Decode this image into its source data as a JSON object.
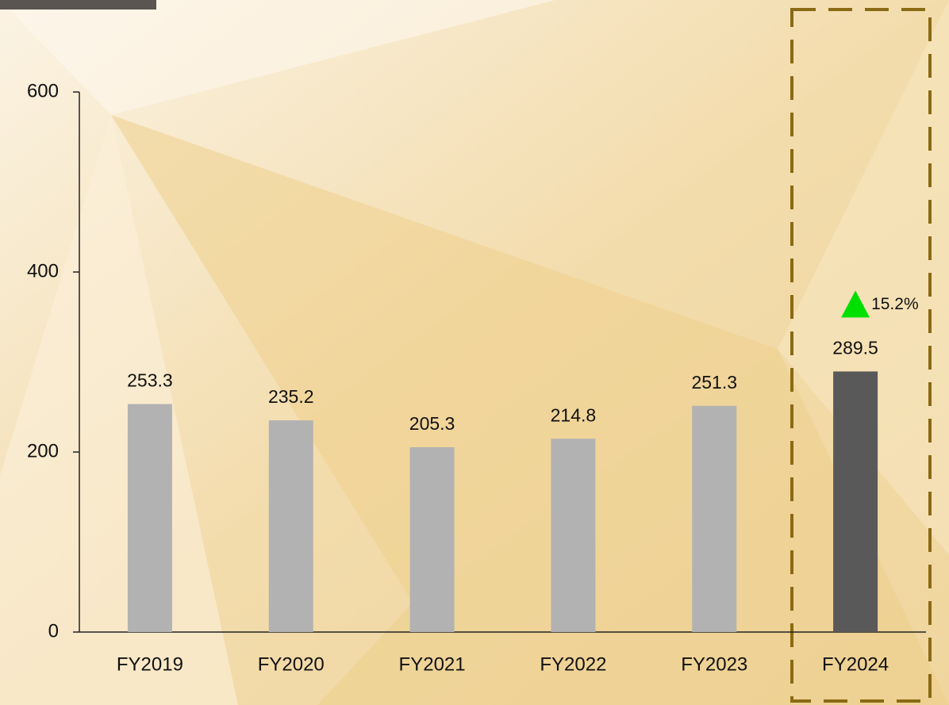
{
  "chart_data": {
    "type": "bar",
    "categories": [
      "FY2019",
      "FY2020",
      "FY2021",
      "FY2022",
      "FY2023",
      "FY2024"
    ],
    "values": [
      253.3,
      235.2,
      205.3,
      214.8,
      251.3,
      289.5
    ],
    "colors": [
      "#b2b2b2",
      "#b2b2b2",
      "#b2b2b2",
      "#b2b2b2",
      "#b2b2b2",
      "#595959"
    ],
    "ylim": [
      0,
      600
    ],
    "yticks": [
      0,
      200,
      400,
      600
    ],
    "annotation": "15.2%",
    "annotation_color": "#00e000"
  }
}
